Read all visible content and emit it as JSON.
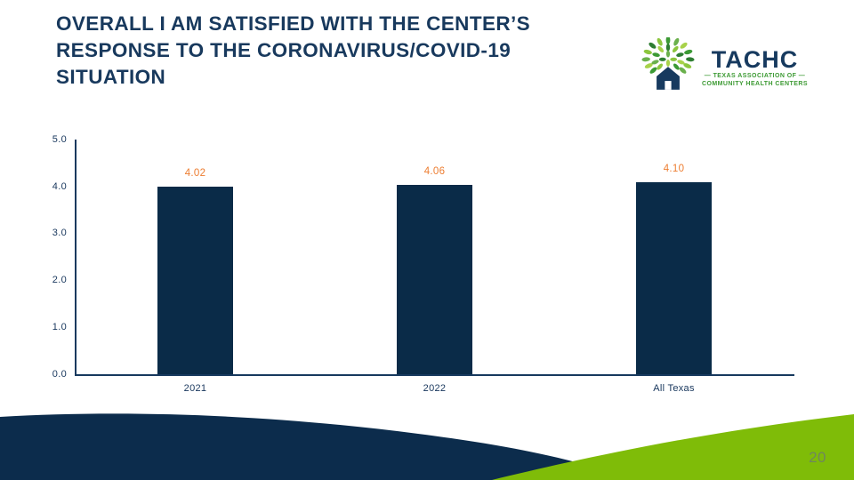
{
  "slide": {
    "title_lines": [
      "OVERALL I AM SATISFIED WITH THE CENTER’S",
      "RESPONSE TO THE CORONAVIRUS/COVID-19",
      "SITUATION"
    ],
    "page_number": "20"
  },
  "logo": {
    "wordmark": "TACHC",
    "subtitle_line1": "— TEXAS ASSOCIATION OF —",
    "subtitle_line2": "COMMUNITY HEALTH CENTERS"
  },
  "chart_data": {
    "type": "bar",
    "title": "Overall I am satisfied with the center’s response to the coronavirus/COVID-19 situation",
    "categories": [
      "2021",
      "2022",
      "All Texas"
    ],
    "values": [
      4.02,
      4.06,
      4.1
    ],
    "value_labels": [
      "4.02",
      "4.06",
      "4.10"
    ],
    "xlabel": "",
    "ylabel": "",
    "ylim": [
      0,
      5
    ],
    "ytick_labels": [
      "0.0",
      "1.0",
      "2.0",
      "3.0",
      "4.0",
      "5.0"
    ],
    "grid": "off",
    "legend": "none",
    "bar_color": "#0a2b48",
    "value_label_color": "#ed7d31"
  },
  "colors": {
    "navy_text": "#18395d",
    "navy_wave": "#0c2c4c",
    "green_wave": "#7fbc08",
    "logo_green": "#3e9b35",
    "axis": "#17395e"
  }
}
